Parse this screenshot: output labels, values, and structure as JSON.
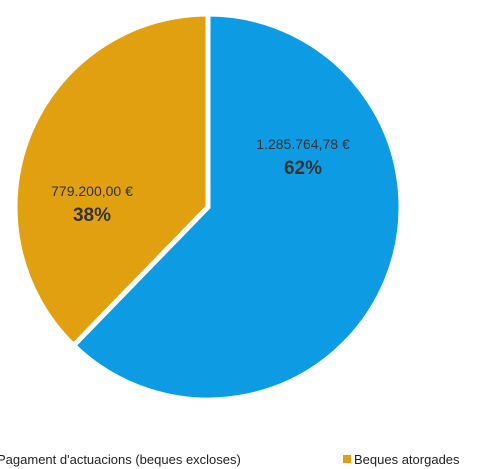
{
  "chart_data": {
    "type": "pie",
    "title": "",
    "legend_position": "bottom",
    "slices": [
      {
        "name": "Pagament d'actuacions (beques excloses)",
        "value": 1285764.78,
        "amount_label": "1.285.764,78 €",
        "percent": 62,
        "percent_label": "62%",
        "color": "#0d9ce3"
      },
      {
        "name": "Beques atorgades",
        "value": 779200.0,
        "amount_label": "779.200,00 €",
        "percent": 38,
        "percent_label": "38%",
        "color": "#e1a010"
      }
    ]
  }
}
